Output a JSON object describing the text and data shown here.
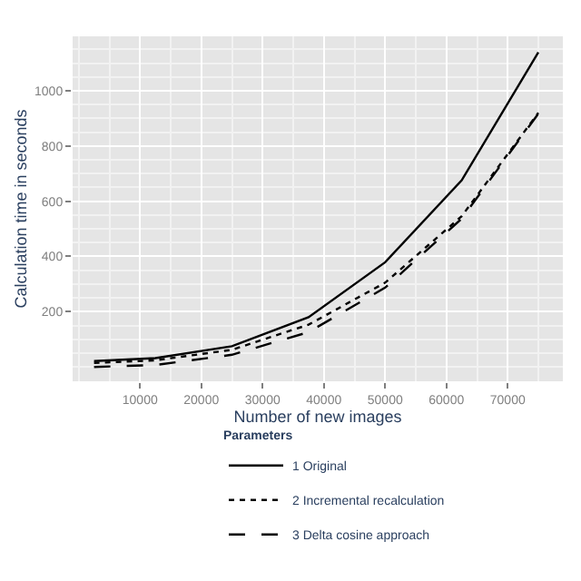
{
  "chart_data": {
    "type": "line",
    "xlabel": "Number of new images",
    "ylabel": "Calculation time in seconds",
    "legend_title": "Parameters",
    "x": [
      2500,
      12500,
      25000,
      37500,
      50000,
      62500,
      75000
    ],
    "series": [
      {
        "name": "1 Original",
        "color": "#000000",
        "line_style": "solid",
        "values": [
          21,
          32,
          75,
          180,
          379,
          676,
          1139
        ]
      },
      {
        "name": "2 Incremental recalculation",
        "color": "#000000",
        "line_style": "dotted",
        "values": [
          14,
          24,
          62,
          153,
          305,
          546,
          920
        ]
      },
      {
        "name": "3 Delta cosine approach",
        "color": "#000000",
        "line_style": "dashed",
        "values": [
          0,
          7,
          44,
          126,
          287,
          537,
          917
        ]
      }
    ],
    "xlim": [
      -1000,
      79000
    ],
    "ylim": [
      -52,
      1197
    ],
    "xticks": [
      10000,
      20000,
      30000,
      40000,
      50000,
      60000,
      70000
    ],
    "yticks": [
      200,
      400,
      600,
      800,
      1000
    ],
    "grid": true,
    "legend": "bottom",
    "marker": "none"
  }
}
